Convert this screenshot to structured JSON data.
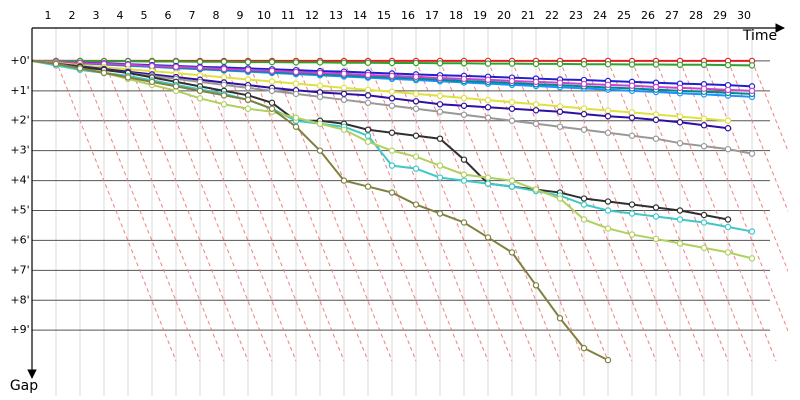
{
  "chart_data": {
    "type": "line",
    "x_label": "Time",
    "y_label": "Gap",
    "x": [
      0,
      1,
      2,
      3,
      4,
      5,
      6,
      7,
      8,
      9,
      10,
      11,
      12,
      13,
      14,
      15,
      16,
      17,
      18,
      19,
      20,
      21,
      22,
      23,
      24,
      25,
      26,
      27,
      28,
      29,
      30
    ],
    "xlim": [
      0,
      31.5
    ],
    "ylim": [
      -1.1,
      11.2
    ],
    "xticks": [
      1,
      2,
      3,
      4,
      5,
      6,
      7,
      8,
      9,
      10,
      11,
      12,
      13,
      14,
      15,
      16,
      17,
      18,
      19,
      20,
      21,
      22,
      23,
      24,
      25,
      26,
      27,
      28,
      29,
      30
    ],
    "yticks": [
      {
        "value": 0,
        "label": "+0'"
      },
      {
        "value": 1,
        "label": "+1'"
      },
      {
        "value": 2,
        "label": "+2'"
      },
      {
        "value": 3,
        "label": "+3'"
      },
      {
        "value": 4,
        "label": "+4'"
      },
      {
        "value": 5,
        "label": "+5'"
      },
      {
        "value": 6,
        "label": "+6'"
      },
      {
        "value": 7,
        "label": "+7'"
      },
      {
        "value": 8,
        "label": "+8'"
      },
      {
        "value": 9,
        "label": "+9'"
      }
    ],
    "grid": true,
    "series": [
      {
        "color": "#e02020",
        "values": [
          0,
          0,
          0,
          0,
          0,
          0,
          0,
          0,
          0,
          0,
          0,
          0,
          0,
          0,
          0,
          0,
          0,
          0,
          0,
          0,
          0,
          0,
          0,
          0,
          0,
          0,
          0,
          0,
          0,
          0,
          0
        ]
      },
      {
        "color": "#30a030",
        "values": [
          0,
          0,
          0,
          0.01,
          0.01,
          0.02,
          0.02,
          0.03,
          0.03,
          0.04,
          0.04,
          0.05,
          0.05,
          0.06,
          0.06,
          0.07,
          0.07,
          0.08,
          0.08,
          0.09,
          0.09,
          0.1,
          0.1,
          0.11,
          0.11,
          0.12,
          0.12,
          0.13,
          0.13,
          0.14,
          0.15
        ]
      },
      {
        "color": "#2020d0",
        "values": [
          0,
          0.03,
          0.06,
          0.08,
          0.11,
          0.14,
          0.17,
          0.2,
          0.22,
          0.25,
          0.28,
          0.31,
          0.34,
          0.36,
          0.39,
          0.42,
          0.45,
          0.48,
          0.5,
          0.53,
          0.56,
          0.59,
          0.62,
          0.64,
          0.67,
          0.7,
          0.73,
          0.76,
          0.78,
          0.81,
          0.85
        ]
      },
      {
        "color": "#1e90ff",
        "values": [
          0,
          0.04,
          0.08,
          0.12,
          0.16,
          0.2,
          0.24,
          0.28,
          0.32,
          0.36,
          0.4,
          0.44,
          0.48,
          0.52,
          0.56,
          0.6,
          0.64,
          0.68,
          0.72,
          0.76,
          0.8,
          0.84,
          0.88,
          0.92,
          0.96,
          1.0,
          1.04,
          1.08,
          1.12,
          1.16,
          1.2
        ]
      },
      {
        "color": "#008b8b",
        "values": [
          0,
          0.04,
          0.07,
          0.11,
          0.15,
          0.18,
          0.22,
          0.26,
          0.3,
          0.33,
          0.37,
          0.41,
          0.44,
          0.48,
          0.52,
          0.55,
          0.59,
          0.63,
          0.67,
          0.7,
          0.74,
          0.78,
          0.81,
          0.85,
          0.89,
          0.92,
          0.96,
          1.0,
          1.03,
          1.07,
          1.1
        ]
      },
      {
        "color": "#cc44cc",
        "values": [
          0,
          0.03,
          0.07,
          0.1,
          0.13,
          0.17,
          0.2,
          0.23,
          0.27,
          0.3,
          0.33,
          0.37,
          0.4,
          0.43,
          0.47,
          0.5,
          0.53,
          0.57,
          0.6,
          0.63,
          0.67,
          0.7,
          0.73,
          0.77,
          0.8,
          0.83,
          0.87,
          0.9,
          0.93,
          0.97,
          1.0
        ]
      },
      {
        "color": "#e0e040",
        "values": [
          0,
          0.07,
          0.14,
          0.21,
          0.28,
          0.34,
          0.41,
          0.48,
          0.55,
          0.62,
          0.69,
          0.76,
          0.83,
          0.9,
          0.97,
          1.03,
          1.1,
          1.17,
          1.24,
          1.31,
          1.38,
          1.45,
          1.52,
          1.59,
          1.66,
          1.72,
          1.79,
          1.86,
          1.93,
          2.0,
          null
        ]
      },
      {
        "color": "#3010a0",
        "values": [
          0,
          0.09,
          0.18,
          0.27,
          0.36,
          0.45,
          0.54,
          0.63,
          0.72,
          0.81,
          0.9,
          0.98,
          1.05,
          1.1,
          1.15,
          1.25,
          1.35,
          1.45,
          1.5,
          1.55,
          1.6,
          1.65,
          1.7,
          1.78,
          1.85,
          1.9,
          1.97,
          2.05,
          2.15,
          2.25,
          null
        ]
      },
      {
        "color": "#999999",
        "values": [
          0,
          0.1,
          0.2,
          0.3,
          0.4,
          0.5,
          0.6,
          0.7,
          0.8,
          0.9,
          1.0,
          1.1,
          1.2,
          1.3,
          1.4,
          1.5,
          1.6,
          1.7,
          1.8,
          1.9,
          2.0,
          2.1,
          2.2,
          2.3,
          2.4,
          2.5,
          2.6,
          2.75,
          2.85,
          2.95,
          3.1
        ]
      },
      {
        "color": "#303030",
        "values": [
          0,
          0.1,
          0.2,
          0.3,
          0.4,
          0.55,
          0.7,
          0.85,
          1.0,
          1.15,
          1.4,
          2.0,
          2.0,
          2.1,
          2.3,
          2.4,
          2.5,
          2.6,
          3.3,
          4.1,
          4.2,
          4.3,
          4.4,
          4.6,
          4.7,
          4.8,
          4.9,
          5.0,
          5.15,
          5.3,
          null
        ]
      },
      {
        "color": "#40c8c8",
        "values": [
          0,
          0.15,
          0.3,
          0.4,
          0.5,
          0.65,
          0.8,
          0.95,
          1.1,
          1.3,
          1.6,
          2.0,
          2.1,
          2.2,
          2.5,
          3.5,
          3.6,
          3.9,
          4.0,
          4.1,
          4.2,
          4.35,
          4.5,
          4.8,
          5.0,
          5.1,
          5.2,
          5.3,
          5.4,
          5.55,
          5.7
        ]
      },
      {
        "color": "#b0d060",
        "values": [
          0,
          0.1,
          0.25,
          0.4,
          0.6,
          0.8,
          1.0,
          1.25,
          1.45,
          1.6,
          1.7,
          1.9,
          2.1,
          2.3,
          2.7,
          3.0,
          3.2,
          3.5,
          3.8,
          3.9,
          4.0,
          4.3,
          4.6,
          5.3,
          5.6,
          5.8,
          5.95,
          6.1,
          6.25,
          6.4,
          6.6
        ]
      },
      {
        "color": "#808040",
        "values": [
          0,
          0.1,
          0.25,
          0.4,
          0.55,
          0.7,
          0.85,
          1.0,
          1.15,
          1.3,
          1.6,
          2.2,
          3.0,
          4.0,
          4.2,
          4.4,
          4.8,
          5.1,
          5.4,
          5.9,
          6.4,
          7.5,
          8.6,
          9.6,
          10.0,
          null,
          null,
          null,
          null,
          null,
          null
        ]
      }
    ]
  }
}
